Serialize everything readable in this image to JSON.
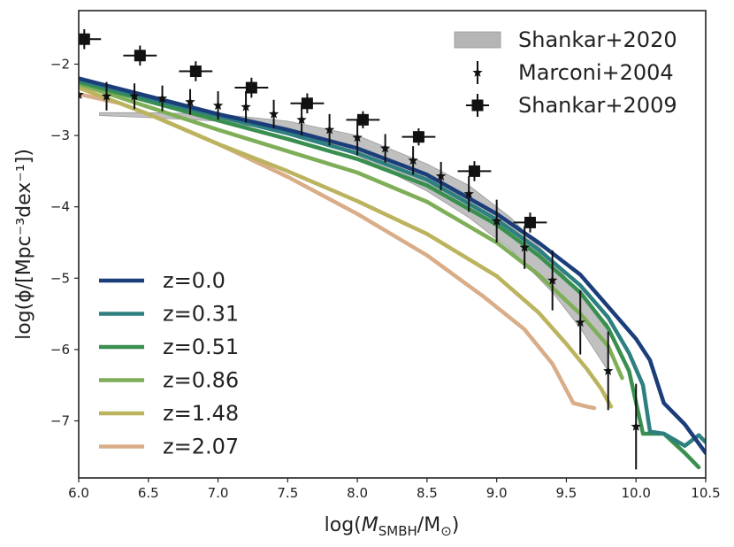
{
  "chart_data": {
    "type": "line",
    "xlabel": {
      "main": "log(",
      "italic": "M",
      "sub": "SMBH",
      "tail": "/M",
      "sun": "⊙",
      "close": ")"
    },
    "ylabel": "log(ϕ/[Mpc⁻³dex⁻¹])",
    "xlim": [
      6.0,
      10.5
    ],
    "ylim": [
      -7.8,
      -1.25
    ],
    "xticks": [
      6.0,
      6.5,
      7.0,
      7.5,
      8.0,
      8.5,
      9.0,
      9.5,
      10.0,
      10.5
    ],
    "xtick_labels": [
      "6.0",
      "6.5",
      "7.0",
      "7.5",
      "8.0",
      "8.5",
      "9.0",
      "9.5",
      "10.0",
      "10.5"
    ],
    "yticks": [
      -2,
      -3,
      -4,
      -5,
      -6,
      -7
    ],
    "ytick_labels": [
      "−2",
      "−3",
      "−4",
      "−5",
      "−6",
      "−7"
    ],
    "grid": false,
    "legend_top": {
      "position": "top-right",
      "entries": [
        {
          "label": "Shankar+2020",
          "kind": "band"
        },
        {
          "label": "Marconi+2004",
          "kind": "star-errorbar"
        },
        {
          "label": "Shankar+2009",
          "kind": "square-errorbar"
        }
      ]
    },
    "legend_bottom": {
      "position": "bottom-left"
    },
    "series": [
      {
        "name": "z=0.0",
        "color": "#1b3d7a",
        "x": [
          6.0,
          6.5,
          7.0,
          7.5,
          8.0,
          8.5,
          9.0,
          9.3,
          9.6,
          9.8,
          10.0,
          10.1,
          10.2,
          10.35,
          10.5
        ],
        "y": [
          -2.2,
          -2.45,
          -2.7,
          -2.92,
          -3.18,
          -3.55,
          -4.1,
          -4.5,
          -4.95,
          -5.4,
          -5.85,
          -6.15,
          -6.75,
          -7.05,
          -7.45
        ]
      },
      {
        "name": "z=0.31",
        "color": "#2e7f7f",
        "x": [
          6.0,
          6.5,
          7.0,
          7.5,
          8.0,
          8.5,
          9.0,
          9.3,
          9.6,
          9.8,
          9.95,
          10.05,
          10.1,
          10.2,
          10.35,
          10.45,
          10.5
        ],
        "y": [
          -2.22,
          -2.48,
          -2.73,
          -2.97,
          -3.25,
          -3.62,
          -4.18,
          -4.6,
          -5.1,
          -5.55,
          -6.05,
          -6.5,
          -7.15,
          -7.18,
          -7.35,
          -7.2,
          -7.3
        ]
      },
      {
        "name": "z=0.51",
        "color": "#3a8f4f",
        "x": [
          6.0,
          6.5,
          7.0,
          7.5,
          8.0,
          8.5,
          9.0,
          9.3,
          9.6,
          9.8,
          9.95,
          10.05,
          10.2,
          10.35,
          10.45
        ],
        "y": [
          -2.25,
          -2.52,
          -2.79,
          -3.05,
          -3.33,
          -3.7,
          -4.25,
          -4.68,
          -5.2,
          -5.7,
          -6.3,
          -7.18,
          -7.18,
          -7.45,
          -7.65
        ]
      },
      {
        "name": "z=0.86",
        "color": "#7fae58",
        "x": [
          6.0,
          6.5,
          7.0,
          7.5,
          8.0,
          8.5,
          9.0,
          9.3,
          9.6,
          9.8,
          9.9
        ],
        "y": [
          -2.28,
          -2.6,
          -2.92,
          -3.22,
          -3.52,
          -3.93,
          -4.5,
          -4.95,
          -5.5,
          -5.95,
          -6.4
        ]
      },
      {
        "name": "z=1.48",
        "color": "#bcb35e",
        "x": [
          6.0,
          6.5,
          7.0,
          7.5,
          8.0,
          8.5,
          9.0,
          9.3,
          9.5,
          9.65,
          9.75,
          9.82
        ],
        "y": [
          -2.33,
          -2.7,
          -3.12,
          -3.5,
          -3.92,
          -4.38,
          -4.97,
          -5.48,
          -5.92,
          -6.28,
          -6.55,
          -6.8
        ]
      },
      {
        "name": "z=2.07",
        "color": "#d9ad88",
        "x": [
          6.0,
          6.3,
          6.6,
          7.0,
          7.5,
          8.0,
          8.5,
          8.9,
          9.2,
          9.4,
          9.55,
          9.65,
          9.7
        ],
        "y": [
          -2.42,
          -2.55,
          -2.78,
          -3.12,
          -3.58,
          -4.1,
          -4.68,
          -5.25,
          -5.72,
          -6.2,
          -6.75,
          -6.8,
          -6.82
        ]
      }
    ],
    "band": {
      "name": "Shankar+2020",
      "color": "#b5b5b5",
      "x": [
        6.15,
        6.5,
        7.0,
        7.5,
        8.0,
        8.5,
        8.8,
        9.1,
        9.4,
        9.6,
        9.8
      ],
      "upper": [
        -2.68,
        -2.68,
        -2.7,
        -2.8,
        -3.0,
        -3.4,
        -3.7,
        -4.15,
        -4.75,
        -5.25,
        -5.65
      ],
      "lower": [
        -2.72,
        -2.75,
        -2.8,
        -2.95,
        -3.28,
        -3.78,
        -4.15,
        -4.6,
        -5.2,
        -5.7,
        -6.3
      ]
    },
    "marconi2004": {
      "name": "Marconi+2004",
      "x": [
        6.0,
        6.2,
        6.4,
        6.6,
        6.8,
        7.0,
        7.2,
        7.4,
        7.6,
        7.8,
        8.0,
        8.2,
        8.4,
        8.6,
        8.8,
        9.0,
        9.2,
        9.4,
        9.6,
        9.8,
        10.0
      ],
      "y": [
        -2.43,
        -2.45,
        -2.45,
        -2.48,
        -2.53,
        -2.58,
        -2.6,
        -2.7,
        -2.78,
        -2.92,
        -3.03,
        -3.18,
        -3.35,
        -3.57,
        -3.82,
        -4.2,
        -4.57,
        -5.03,
        -5.62,
        -6.3,
        -7.08
      ],
      "yerr": [
        0.05,
        0.2,
        0.18,
        0.18,
        0.18,
        0.2,
        0.22,
        0.2,
        0.22,
        0.22,
        0.25,
        0.2,
        0.2,
        0.2,
        0.25,
        0.3,
        0.3,
        0.42,
        0.45,
        0.55,
        0.6
      ]
    },
    "shankar2009": {
      "name": "Shankar+2009",
      "x": [
        6.04,
        6.44,
        6.84,
        7.24,
        7.64,
        8.04,
        8.44,
        8.84,
        9.24
      ],
      "y": [
        -1.65,
        -1.88,
        -2.1,
        -2.33,
        -2.55,
        -2.78,
        -3.02,
        -3.5,
        -4.22
      ],
      "xerr": [
        0.12,
        0.12,
        0.12,
        0.12,
        0.12,
        0.12,
        0.12,
        0.12,
        0.12
      ],
      "yerr": [
        0.14,
        0.14,
        0.14,
        0.14,
        0.14,
        0.12,
        0.12,
        0.14,
        0.14
      ]
    }
  }
}
